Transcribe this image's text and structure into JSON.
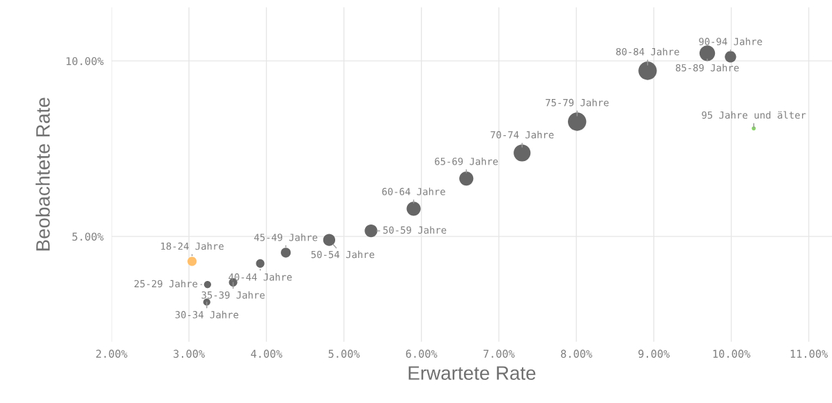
{
  "chart_data": {
    "type": "bubble",
    "xlabel": "Erwartete Rate",
    "ylabel": "Beobachtete Rate",
    "x": [
      3.04,
      3.24,
      3.23,
      3.57,
      3.92,
      4.25,
      4.81,
      5.35,
      5.9,
      6.58,
      7.3,
      8.01,
      8.92,
      9.69,
      9.99,
      10.29
    ],
    "values": [
      4.29,
      3.63,
      3.13,
      3.69,
      4.23,
      4.54,
      4.9,
      5.16,
      5.79,
      6.65,
      7.38,
      8.27,
      9.72,
      10.22,
      10.12,
      8.08
    ],
    "sizes": [
      0.25,
      0.15,
      0.15,
      0.21,
      0.21,
      0.29,
      0.43,
      0.48,
      0.59,
      0.59,
      0.85,
      1,
      1,
      0.72,
      0.38,
      0.05
    ],
    "colors": [
      "#ffbf6b",
      "#666666",
      "#666666",
      "#666666",
      "#666666",
      "#666666",
      "#666666",
      "#666666",
      "#666666",
      "#666666",
      "#666666",
      "#666666",
      "#666666",
      "#666666",
      "#666666",
      "#8bd66b"
    ],
    "annotations": [
      {
        "text": "18-24 Jahre",
        "x": 3.04,
        "y": 4.29
      },
      {
        "text": "25-29 Jahre",
        "x": 3.24,
        "y": 3.63
      },
      {
        "text": "30-34 Jahre",
        "x": 3.23,
        "y": 3.13
      },
      {
        "text": "35-39 Jahre",
        "x": 3.57,
        "y": 3.69
      },
      {
        "text": "40-44 Jahre",
        "x": 3.92,
        "y": 4.23
      },
      {
        "text": "45-49 Jahre",
        "x": 4.25,
        "y": 4.54
      },
      {
        "text": "50-54 Jahre",
        "x": 4.81,
        "y": 4.9
      },
      {
        "text": "50-59 Jahre",
        "x": 5.35,
        "y": 5.16
      },
      {
        "text": "60-64 Jahre",
        "x": 5.9,
        "y": 5.79
      },
      {
        "text": "65-69 Jahre",
        "x": 6.58,
        "y": 6.65
      },
      {
        "text": "70-74 Jahre",
        "x": 7.3,
        "y": 7.38
      },
      {
        "text": "75-79 Jahre",
        "x": 8.01,
        "y": 8.27
      },
      {
        "text": "80-84 Jahre",
        "x": 8.92,
        "y": 9.72
      },
      {
        "text": "85-89 Jahre",
        "x": 9.69,
        "y": 10.22
      },
      {
        "text": "90-94 Jahre",
        "x": 9.99,
        "y": 10.12
      },
      {
        "text": "95 Jahre und älter",
        "x": 10.29,
        "y": 8.08
      }
    ],
    "xlim": [
      2.0,
      11.3
    ],
    "ylim": [
      2.0,
      11.53
    ],
    "xticks": [
      {
        "value": 2,
        "label": "2.00%"
      },
      {
        "value": 3,
        "label": "3.00%"
      },
      {
        "value": 4,
        "label": "4.00%"
      },
      {
        "value": 5,
        "label": "5.00%"
      },
      {
        "value": 6,
        "label": "6.00%"
      },
      {
        "value": 7,
        "label": "7.00%"
      },
      {
        "value": 8,
        "label": "8.00%"
      },
      {
        "value": 9,
        "label": "9.00%"
      },
      {
        "value": 10,
        "label": "10.00%"
      },
      {
        "value": 11,
        "label": "11.00%"
      }
    ],
    "yticks": [
      {
        "value": 5,
        "label": "5.00%"
      },
      {
        "value": 10,
        "label": "10.00%"
      }
    ],
    "grid": true
  }
}
